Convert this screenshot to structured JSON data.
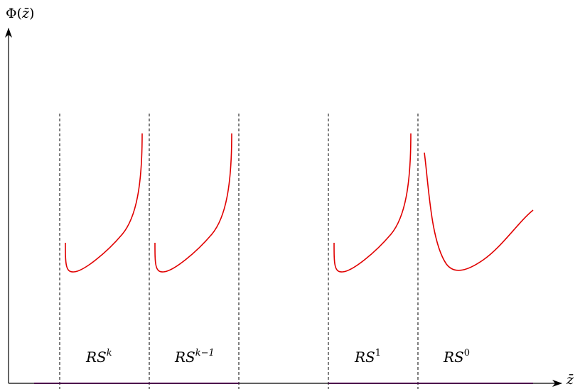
{
  "y_axis_label": {
    "base": "Φ(",
    "var": "z̄",
    "close": ")"
  },
  "x_axis_label": "z̄",
  "regions": [
    {
      "base": "RS",
      "sup": "k"
    },
    {
      "base": "RS",
      "sup": "k−1"
    },
    {
      "base": "RS",
      "sup": "1"
    },
    {
      "base": "RS",
      "sup": "0"
    }
  ],
  "colors": {
    "curve": "#e00000",
    "baseline_segment": "#cc00cc",
    "axis": "#000000",
    "divider": "#000000"
  }
}
